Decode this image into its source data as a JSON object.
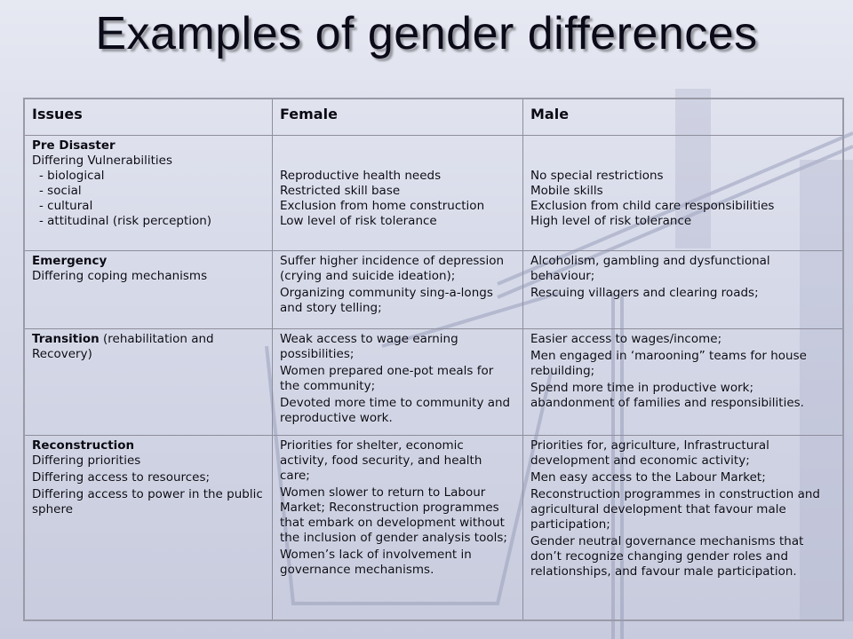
{
  "slide": {
    "title": "Examples of gender differences"
  },
  "colors": {
    "background": "#d9dcea",
    "text": "#0a0a14",
    "border": "#8e8e9c"
  },
  "table": {
    "headers": [
      "Issues",
      "Female",
      "Male"
    ],
    "rows": [
      {
        "issue_title": "Pre Disaster",
        "issue_lines": [
          "Differing Vulnerabilities",
          "- biological",
          "- social",
          "- cultural",
          "- attitudinal (risk  perception)"
        ],
        "female": [
          "Reproductive health needs",
          "Restricted skill base",
          "Exclusion from home construction",
          "Low level of risk tolerance"
        ],
        "male": [
          "No special restrictions",
          "Mobile skills",
          "Exclusion from child care responsibilities",
          "High level of risk tolerance"
        ]
      },
      {
        "issue_title": "Emergency",
        "issue_lines": [
          "Differing coping mechanisms"
        ],
        "female": [
          "Suffer higher incidence of depression (crying and suicide ideation);",
          "Organizing community sing-a-longs and story telling;"
        ],
        "male": [
          "Alcoholism, gambling and dysfunctional behaviour;",
          "Rescuing villagers and clearing roads;"
        ]
      },
      {
        "issue_title": "Transition",
        "issue_title_suffix": " (rehabilitation and Recovery)",
        "issue_lines": [],
        "female": [
          "Weak access  to wage earning possibilities;",
          "Women prepared  one-pot meals for the community;",
          "Devoted more time to community and reproductive work."
        ],
        "male": [
          "Easier access  to wages/income;",
          "Men engaged in ‘marooning” teams for house rebuilding;",
          "Spend more time in productive work; abandonment of families and responsibilities."
        ]
      },
      {
        "issue_title": "Reconstruction",
        "issue_lines": [
          "Differing priorities",
          "Differing access  to resources;",
          "Differing  access  to power in the public sphere"
        ],
        "female": [
          "Priorities for shelter, economic activity, food security, and health care;",
          "Women slower to return to Labour Market;  Reconstruction programmes that embark on development without the inclusion of  gender analysis tools;",
          "Women’s  lack of involvement in governance mechanisms."
        ],
        "male": [
          "Priorities for, agriculture,  Infrastructural development  and  economic activity;",
          "Men  easy access  to the Labour Market;",
          "Reconstruction programmes in construction and agricultural development that favour male participation;",
          "Gender neutral governance mechanisms  that don’t recognize changing gender roles and relationships, and favour male participation."
        ]
      }
    ]
  }
}
